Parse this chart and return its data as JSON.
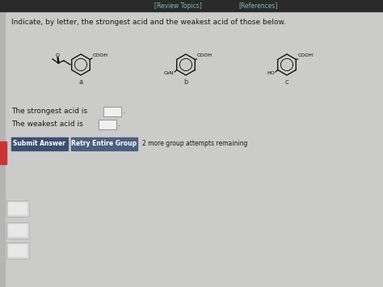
{
  "bg_color": "#c0c0be",
  "top_bar_color": "#2a2a2a",
  "review_topics_text": "[Review Topics]",
  "references_text": "[References]",
  "top_link_color": "#7ababa",
  "question_text": "Indicate, by letter, the strongest acid and the weakest acid of those below.",
  "question_color": "#1a1a1a",
  "molecule_a_label": "a",
  "molecule_b_label": "b",
  "molecule_c_label": "c",
  "strongest_label": "The strongest acid is",
  "weakest_label": "The weakest acid is",
  "submit_btn_text": "Submit Answer",
  "retry_btn_text": "Retry Entire Group",
  "attempts_text": "2 more group attempts remaining",
  "submit_btn_color": "#3a5070",
  "retry_btn_color": "#4a6080",
  "btn_text_color": "#ffffff",
  "input_box_color": "#f0f0f0",
  "input_box_border": "#999999",
  "left_sidebar_color": "#b5b5b3",
  "left_accent_color": "#cc3333",
  "body_color": "#cbcbc9",
  "thumbnail_color": "#d8d8d8",
  "thumbnail_border": "#aaaaaa"
}
